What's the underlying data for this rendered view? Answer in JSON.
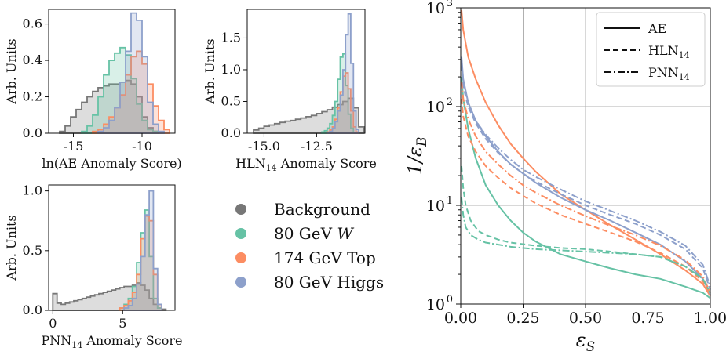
{
  "colors": {
    "Background": "#777777",
    "W": "#66c2a5",
    "Top": "#fc8d62",
    "Higgs": "#8da0cb",
    "grid": "#b0b0b0"
  },
  "legend": {
    "items": [
      {
        "key": "Background",
        "label": "Background"
      },
      {
        "key": "W",
        "label": "80 GeV",
        "suffix": "W"
      },
      {
        "key": "Top",
        "label": "174 GeV Top"
      },
      {
        "key": "Higgs",
        "label": "80 GeV Higgs"
      }
    ]
  },
  "chart_data": [
    {
      "type": "histogram",
      "xlabel": "ln(AE Anomaly Score)",
      "ylabel": "Arb. Units",
      "xlim": [
        -16.8,
        -7.6
      ],
      "ylim": [
        0,
        0.68
      ],
      "xticks": [
        -15,
        -10
      ],
      "xtick_labels": [
        "-15",
        "-10"
      ],
      "yticks": [
        0,
        0.2,
        0.4,
        0.6
      ],
      "ytick_labels": [
        "0.0",
        "0.2",
        "0.4",
        "0.6"
      ],
      "series": [
        {
          "key": "Background",
          "start": -16.0,
          "width": 0.4,
          "values": [
            0.01,
            0.04,
            0.09,
            0.13,
            0.17,
            0.2,
            0.23,
            0.25,
            0.26,
            0.27,
            0.27,
            0.28,
            0.29,
            0.27,
            0.2,
            0.09,
            0.03,
            0.01
          ]
        },
        {
          "key": "W",
          "start": -14.4,
          "width": 0.4,
          "values": [
            0.01,
            0.04,
            0.1,
            0.2,
            0.32,
            0.4,
            0.44,
            0.47,
            0.43,
            0.3,
            0.16,
            0.07,
            0.02,
            0.01
          ]
        },
        {
          "key": "Top",
          "start": -13.6,
          "width": 0.4,
          "values": [
            0.01,
            0.02,
            0.05,
            0.09,
            0.14,
            0.21,
            0.32,
            0.42,
            0.45,
            0.38,
            0.27,
            0.15,
            0.07,
            0.02
          ]
        },
        {
          "key": "Higgs",
          "start": -13.2,
          "width": 0.4,
          "values": [
            0.01,
            0.03,
            0.07,
            0.14,
            0.28,
            0.45,
            0.66,
            0.62,
            0.42,
            0.17,
            0.05,
            0.01
          ]
        }
      ]
    },
    {
      "type": "histogram",
      "xlabel": "HLN14 Anomaly Score",
      "ylabel": "Arb. Units",
      "xlim": [
        -15.8,
        -10.2
      ],
      "ylim": [
        0,
        1.95
      ],
      "xticks": [
        -15.0,
        -12.5
      ],
      "xtick_labels": [
        "-15.0",
        "-12.5"
      ],
      "yticks": [
        0,
        0.5,
        1.0,
        1.5
      ],
      "ytick_labels": [
        "0.0",
        "0.5",
        "1.0",
        "1.5"
      ],
      "series": [
        {
          "key": "Background",
          "start": -15.5,
          "width": 0.25,
          "values": [
            0.05,
            0.08,
            0.11,
            0.13,
            0.15,
            0.17,
            0.19,
            0.2,
            0.22,
            0.24,
            0.26,
            0.28,
            0.31,
            0.34,
            0.37,
            0.41,
            0.45,
            0.5,
            0.55,
            0.4,
            0.1
          ]
        },
        {
          "key": "W",
          "start": -12.25,
          "width": 0.125,
          "values": [
            0.02,
            0.04,
            0.08,
            0.15,
            0.28,
            0.5,
            0.85,
            1.2,
            1.25,
            0.75,
            0.3,
            0.08
          ]
        },
        {
          "key": "Top",
          "start": -12.0,
          "width": 0.125,
          "values": [
            0.02,
            0.05,
            0.1,
            0.22,
            0.4,
            0.65,
            0.9,
            0.95,
            0.7,
            0.35,
            0.1,
            0.02
          ]
        },
        {
          "key": "Higgs",
          "start": -12.0,
          "width": 0.125,
          "values": [
            0.01,
            0.03,
            0.08,
            0.18,
            0.35,
            0.6,
            1.0,
            1.55,
            1.88,
            1.1,
            0.35,
            0.06
          ]
        }
      ]
    },
    {
      "type": "histogram",
      "xlabel": "PNN14 Anomaly Score",
      "ylabel": "Arb. Units",
      "xlim": [
        -0.3,
        8.75
      ],
      "ylim": [
        0,
        1.05
      ],
      "xticks": [
        0,
        5
      ],
      "xtick_labels": [
        "0",
        "5"
      ],
      "yticks": [
        0,
        0.5,
        1.0
      ],
      "ytick_labels": [
        "0.0",
        "0.5",
        "1.0"
      ],
      "series": [
        {
          "key": "Background",
          "start": 0.0,
          "width": 0.3,
          "values": [
            0.14,
            0.06,
            0.05,
            0.06,
            0.07,
            0.08,
            0.09,
            0.1,
            0.11,
            0.12,
            0.13,
            0.14,
            0.15,
            0.16,
            0.17,
            0.18,
            0.19,
            0.2,
            0.2,
            0.21,
            0.23,
            0.21,
            0.17,
            0.1,
            0.05,
            0.02,
            0.01
          ]
        },
        {
          "key": "W",
          "start": 4.8,
          "width": 0.3,
          "values": [
            0.02,
            0.05,
            0.1,
            0.2,
            0.4,
            0.65,
            0.84,
            0.45,
            0.1,
            0.02
          ]
        },
        {
          "key": "Top",
          "start": 4.8,
          "width": 0.3,
          "values": [
            0.02,
            0.04,
            0.08,
            0.15,
            0.3,
            0.6,
            0.79,
            0.75,
            0.3,
            0.05
          ]
        },
        {
          "key": "Higgs",
          "start": 5.1,
          "width": 0.3,
          "values": [
            0.02,
            0.04,
            0.1,
            0.22,
            0.45,
            0.8,
            1.0,
            0.35,
            0.05
          ]
        }
      ]
    },
    {
      "type": "line",
      "xlabel": "εS",
      "ylabel": "1/εB",
      "xlim": [
        0,
        1
      ],
      "ylim": [
        1,
        1000
      ],
      "yscale": "log",
      "grid": true,
      "xticks": [
        0,
        0.25,
        0.5,
        0.75,
        1.0
      ],
      "xtick_labels": [
        "0.00",
        "0.25",
        "0.50",
        "0.75",
        "1.00"
      ],
      "yticks": [
        1,
        10,
        100,
        1000
      ],
      "ytick_labels": [
        "10",
        "10",
        "10",
        "10"
      ],
      "ytick_exponents": [
        "0",
        "1",
        "2",
        "3"
      ],
      "legend_position": "top-right",
      "style_legend": [
        {
          "style": "solid",
          "label": "AE"
        },
        {
          "style": "dashed",
          "label": "HLN14"
        },
        {
          "style": "dashdot",
          "label": "PNN14"
        }
      ],
      "series": [
        {
          "key": "Top",
          "style": "solid",
          "x": [
            0.003,
            0.01,
            0.03,
            0.06,
            0.1,
            0.15,
            0.2,
            0.25,
            0.3,
            0.4,
            0.5,
            0.6,
            0.7,
            0.8,
            0.9,
            0.97,
            1.0
          ],
          "y": [
            950,
            600,
            320,
            190,
            110,
            65,
            42,
            30,
            22,
            13,
            9,
            6.3,
            4.5,
            3.2,
            2.2,
            1.6,
            1.2
          ]
        },
        {
          "key": "W",
          "style": "solid",
          "x": [
            0.003,
            0.01,
            0.03,
            0.06,
            0.1,
            0.15,
            0.2,
            0.25,
            0.3,
            0.4,
            0.5,
            0.6,
            0.7,
            0.8,
            0.9,
            0.97,
            1.0
          ],
          "y": [
            200,
            120,
            60,
            30,
            16,
            10,
            7,
            5.3,
            4.3,
            3.2,
            2.7,
            2.3,
            2.0,
            1.8,
            1.5,
            1.3,
            1.15
          ]
        },
        {
          "key": "Higgs",
          "style": "solid",
          "x": [
            0.003,
            0.01,
            0.03,
            0.06,
            0.1,
            0.15,
            0.2,
            0.25,
            0.3,
            0.4,
            0.5,
            0.6,
            0.7,
            0.8,
            0.9,
            0.97,
            1.0
          ],
          "y": [
            320,
            190,
            110,
            72,
            50,
            35,
            26,
            21,
            17,
            12,
            9,
            7,
            5.3,
            4.0,
            2.7,
            1.8,
            1.25
          ]
        },
        {
          "key": "Top",
          "style": "dashed",
          "x": [
            0.003,
            0.01,
            0.03,
            0.06,
            0.1,
            0.15,
            0.2,
            0.25,
            0.3,
            0.4,
            0.5,
            0.6,
            0.7,
            0.8,
            0.9,
            0.97,
            1.0
          ],
          "y": [
            120,
            80,
            50,
            35,
            25,
            19,
            15,
            12.5,
            10.5,
            8,
            6.5,
            5.3,
            4.3,
            3.3,
            2.4,
            1.7,
            1.25
          ]
        },
        {
          "key": "W",
          "style": "dashed",
          "x": [
            0.003,
            0.01,
            0.02,
            0.04,
            0.07,
            0.1,
            0.15,
            0.2,
            0.3,
            0.4,
            0.5,
            0.6,
            0.7,
            0.8,
            0.9,
            0.97,
            1.0
          ],
          "y": [
            25,
            15,
            10,
            7,
            5.5,
            5,
            4.5,
            4.2,
            3.9,
            3.7,
            3.6,
            3.4,
            3.2,
            3.0,
            2.4,
            1.8,
            1.3
          ]
        },
        {
          "key": "Higgs",
          "style": "dashed",
          "x": [
            0.003,
            0.01,
            0.03,
            0.06,
            0.1,
            0.15,
            0.2,
            0.25,
            0.3,
            0.4,
            0.5,
            0.6,
            0.7,
            0.8,
            0.9,
            0.97,
            1.0
          ],
          "y": [
            260,
            160,
            100,
            68,
            47,
            34,
            26,
            21,
            17.5,
            13,
            10,
            8,
            6.5,
            5,
            3.6,
            2.3,
            1.4
          ]
        },
        {
          "key": "Top",
          "style": "dashdot",
          "x": [
            0.003,
            0.01,
            0.03,
            0.06,
            0.1,
            0.15,
            0.2,
            0.25,
            0.3,
            0.4,
            0.5,
            0.6,
            0.7,
            0.8,
            0.9,
            0.97,
            1.0
          ],
          "y": [
            180,
            120,
            75,
            50,
            35,
            26,
            20,
            16,
            13.5,
            10,
            7.8,
            6.2,
            5,
            3.9,
            2.8,
            1.9,
            1.3
          ]
        },
        {
          "key": "W",
          "style": "dashdot",
          "x": [
            0.003,
            0.01,
            0.02,
            0.04,
            0.07,
            0.1,
            0.15,
            0.2,
            0.3,
            0.4,
            0.5,
            0.6,
            0.7,
            0.8,
            0.9,
            0.97,
            1.0
          ],
          "y": [
            12,
            8,
            6,
            5,
            4.5,
            4.2,
            4.0,
            3.8,
            3.6,
            3.5,
            3.4,
            3.3,
            3.2,
            3.0,
            2.4,
            1.8,
            1.3
          ]
        },
        {
          "key": "Higgs",
          "style": "dashdot",
          "x": [
            0.003,
            0.01,
            0.03,
            0.06,
            0.1,
            0.15,
            0.2,
            0.25,
            0.3,
            0.4,
            0.5,
            0.6,
            0.7,
            0.8,
            0.9,
            0.97,
            1.0
          ],
          "y": [
            300,
            180,
            110,
            72,
            52,
            38,
            29,
            23,
            19.5,
            14.5,
            11,
            8.8,
            7,
            5.4,
            3.9,
            2.5,
            1.5
          ]
        }
      ]
    }
  ]
}
